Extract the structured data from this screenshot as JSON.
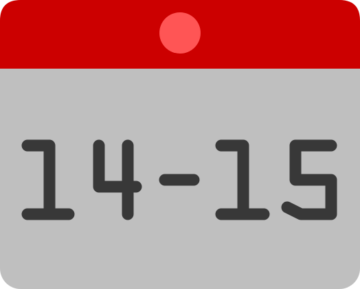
{
  "calendar": {
    "date_range_text": "14-15",
    "colors": {
      "header": "#cc0000",
      "header_dot": "#ff5555",
      "body": "#bfbfbf",
      "digits": "#383838"
    }
  }
}
